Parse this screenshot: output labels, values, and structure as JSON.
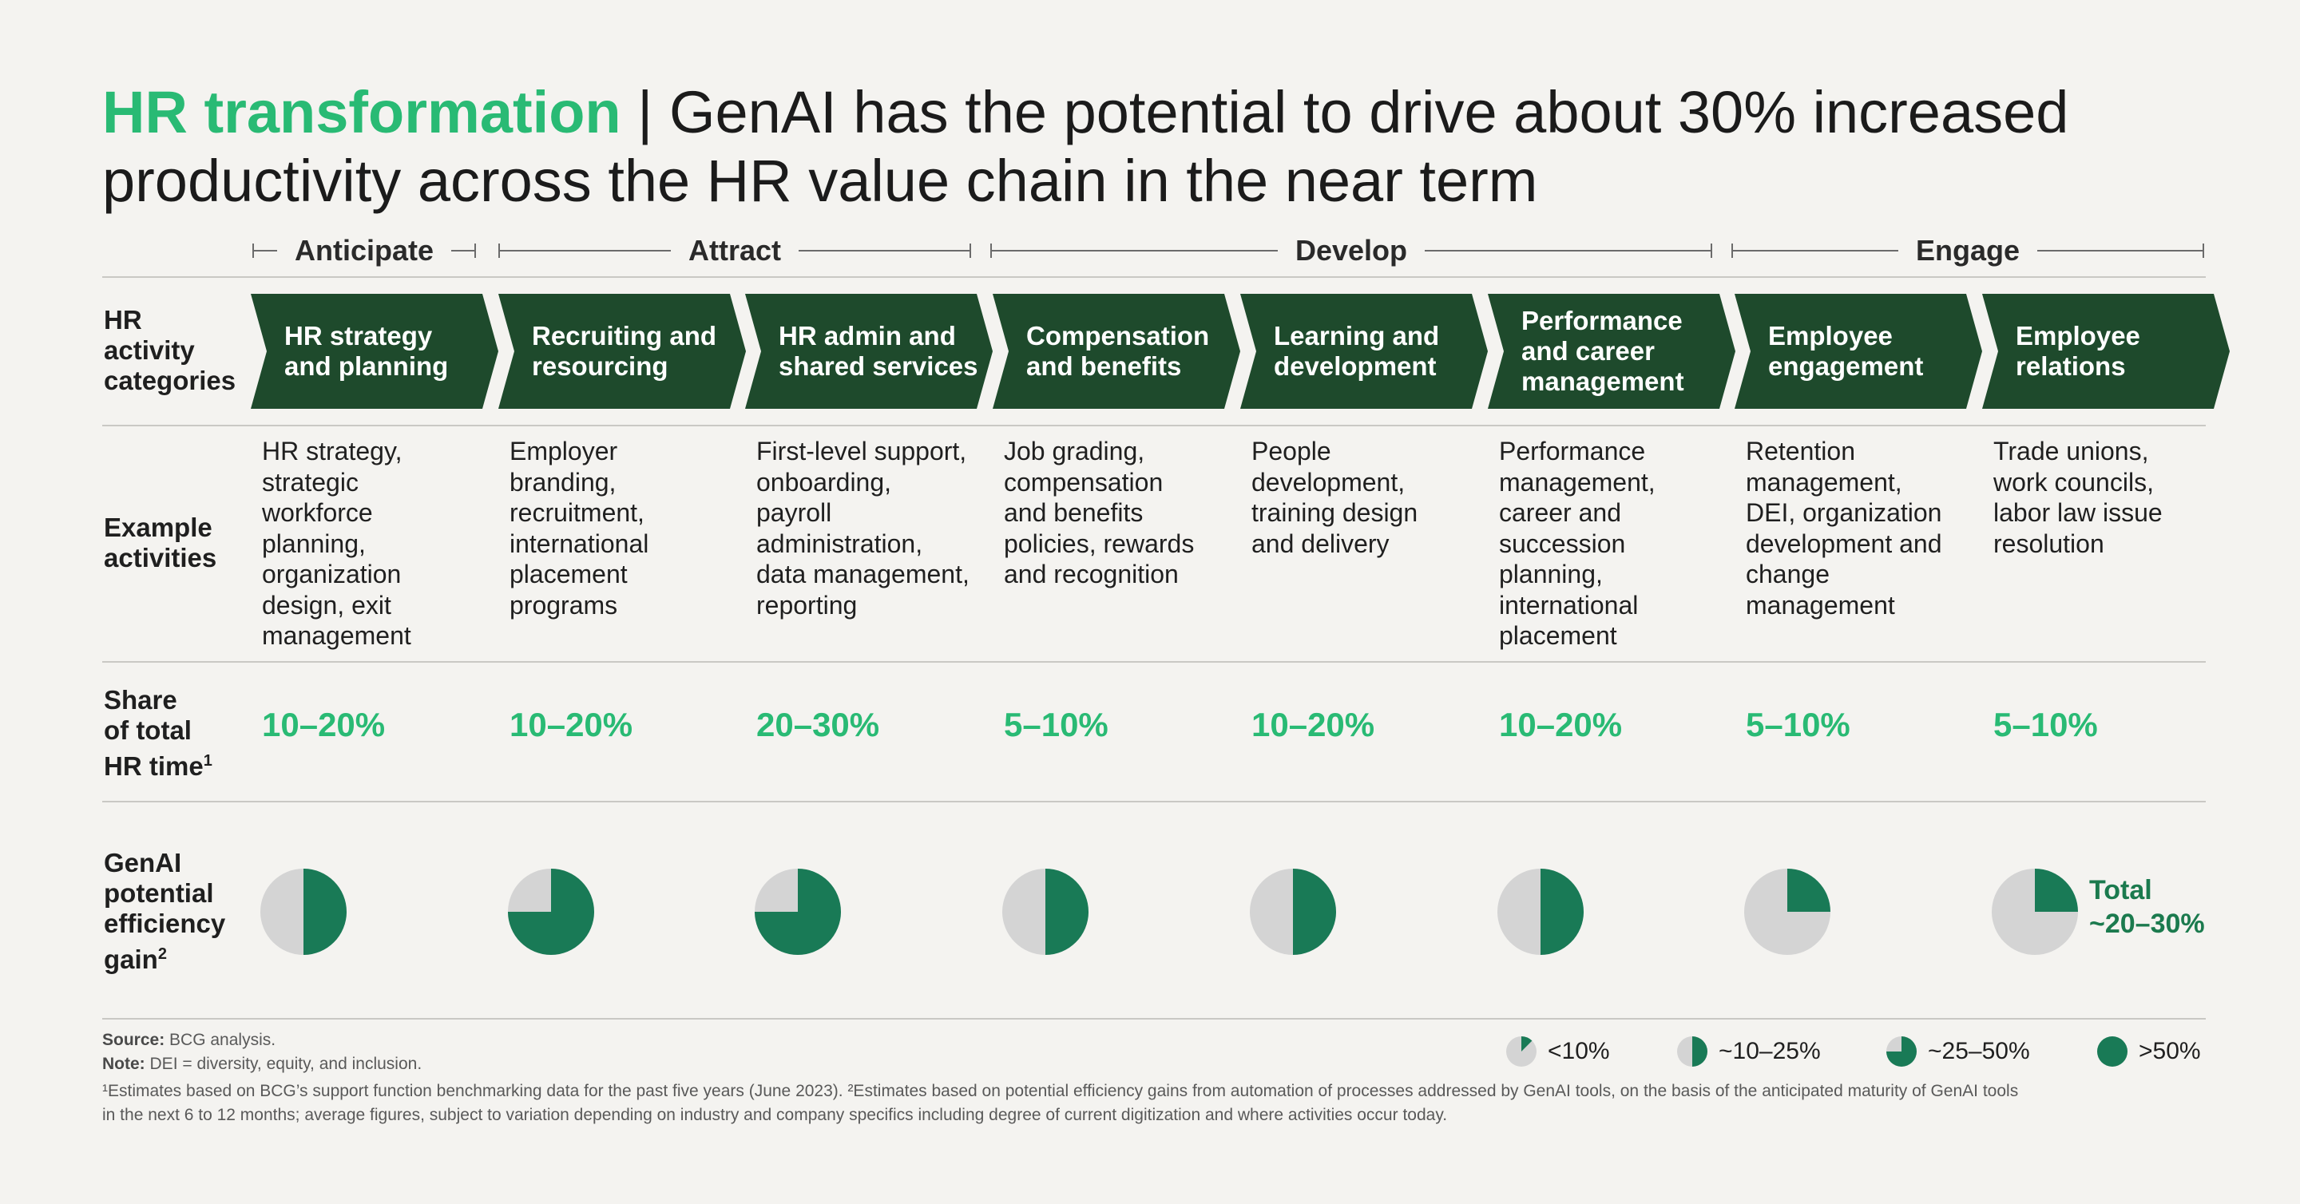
{
  "title": {
    "highlight": "HR transformation",
    "separator": " | ",
    "rest": "GenAI has the potential to drive about 30% increased productivity across the HR value chain in the near term"
  },
  "row_labels": {
    "categories": [
      "HR",
      "activity",
      "categories"
    ],
    "examples": [
      "Example",
      "activities"
    ],
    "share": [
      "Share",
      "of total",
      "HR time"
    ],
    "share_sup": "1",
    "gain": [
      "GenAI",
      "potential",
      "efficiency",
      "gain"
    ],
    "gain_sup": "2"
  },
  "phases": [
    {
      "label": "Anticipate"
    },
    {
      "label": "Attract"
    },
    {
      "label": "Develop"
    },
    {
      "label": "Engage"
    }
  ],
  "colors": {
    "dark_green": "#1e4a2c",
    "accent_green": "#29ba74",
    "pie_green": "#197a56",
    "pie_gray": "#d4d4d4"
  },
  "chart_data": {
    "type": "table",
    "columns": [
      {
        "category": [
          "HR strategy",
          "and planning"
        ],
        "examples": [
          "HR strategy,",
          "strategic",
          "workforce",
          "planning,",
          "organization",
          "design, exit",
          "management"
        ],
        "share": "10–20%",
        "gain_fraction": 0.5
      },
      {
        "category": [
          "Recruiting and",
          "resourcing"
        ],
        "examples": [
          "Employer",
          "branding,",
          "recruitment,",
          "international",
          "placement",
          "programs"
        ],
        "share": "10–20%",
        "gain_fraction": 0.75
      },
      {
        "category": [
          "HR admin and",
          "shared services"
        ],
        "examples": [
          "First-level support,",
          "onboarding,",
          "payroll",
          "administration,",
          "data management,",
          "reporting"
        ],
        "share": "20–30%",
        "gain_fraction": 0.75
      },
      {
        "category": [
          "Compensation",
          "and benefits"
        ],
        "examples": [
          "Job grading,",
          "compensation",
          "and benefits",
          "policies, rewards",
          "and recognition"
        ],
        "share": "5–10%",
        "gain_fraction": 0.5
      },
      {
        "category": [
          "Learning and",
          "development"
        ],
        "examples": [
          "People",
          "development,",
          "training design",
          "and delivery"
        ],
        "share": "10–20%",
        "gain_fraction": 0.5
      },
      {
        "category": [
          "Performance",
          "and career",
          "management"
        ],
        "examples": [
          "Performance",
          "management,",
          "career and",
          "succession",
          "planning,",
          "international",
          "placement"
        ],
        "share": "10–20%",
        "gain_fraction": 0.5
      },
      {
        "category": [
          "Employee",
          "engagement"
        ],
        "examples": [
          "Retention",
          "management,",
          "DEI, organization",
          "development and",
          "change",
          "management"
        ],
        "share": "5–10%",
        "gain_fraction": 0.25
      },
      {
        "category": [
          "Employee",
          "relations"
        ],
        "examples": [
          "Trade unions,",
          "work councils,",
          "labor law issue",
          "resolution"
        ],
        "share": "5–10%",
        "gain_fraction": 0.25
      }
    ],
    "total": {
      "label": "Total",
      "value": "~20–30%"
    }
  },
  "legend": [
    {
      "label": "<10%",
      "fraction": 0.125
    },
    {
      "label": "~10–25%",
      "fraction": 0.5
    },
    {
      "label": "~25–50%",
      "fraction": 0.75
    },
    {
      "label": ">50%",
      "fraction": 1.0
    }
  ],
  "footer": {
    "source_label": "Source:",
    "source_text": "BCG analysis.",
    "note_label": "Note:",
    "note_text": "DEI = diversity, equity, and inclusion.",
    "footnote_line1": "¹Estimates based on BCG’s support function benchmarking data for the past five years (June 2023). ²Estimates based on potential efficiency gains from automation of processes addressed by GenAI tools, on the basis of the anticipated maturity of GenAI tools",
    "footnote_line2": "in the next 6 to 12 months; average figures, subject to variation depending on industry and company specifics including degree of current digitization and where activities occur today."
  }
}
